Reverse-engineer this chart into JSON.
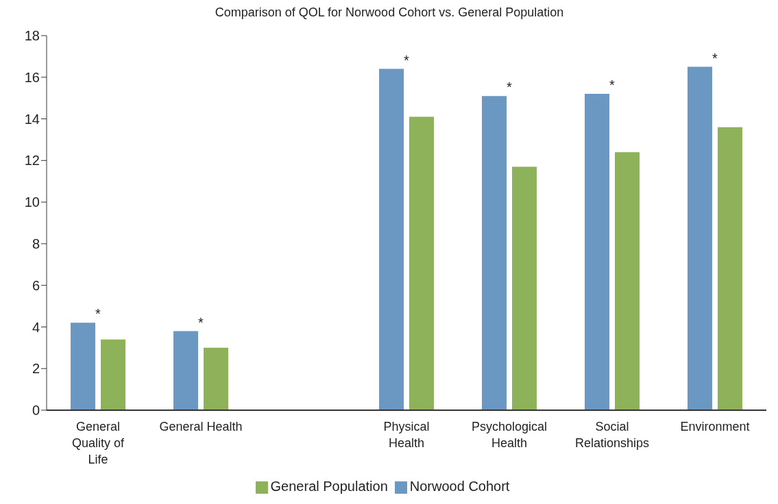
{
  "chart_data": {
    "type": "bar",
    "title": "Comparison of QOL for Norwood Cohort vs. General Population",
    "categories": [
      "General Quality of Life",
      "General Health",
      null,
      "Physical Health",
      "Psychological Health",
      "Social Relationships",
      "Environment"
    ],
    "series": [
      {
        "name": "Norwood Cohort",
        "color": "#6b98c3",
        "values": [
          4.2,
          3.8,
          null,
          16.4,
          15.1,
          15.2,
          16.5
        ]
      },
      {
        "name": "General Population",
        "color": "#8db25a",
        "values": [
          3.4,
          3.0,
          null,
          14.1,
          11.7,
          12.4,
          13.6
        ]
      }
    ],
    "ylim": [
      0,
      18
    ],
    "yticks": [
      0,
      2,
      4,
      6,
      8,
      10,
      12,
      14,
      16,
      18
    ],
    "grid": false,
    "legend": "bottom",
    "annotations": [
      {
        "text": "*",
        "x": "General Quality of Life",
        "y": 4.2
      },
      {
        "text": "*",
        "x": "General Health",
        "y": 3.8
      },
      {
        "text": "*",
        "x": "Physical Health",
        "y": 16.4
      },
      {
        "text": "*",
        "x": "Psychological Health",
        "y": 15.1
      },
      {
        "text": "*",
        "x": "Social Relationships",
        "y": 15.2
      },
      {
        "text": "*",
        "x": "Environment",
        "y": 16.5
      }
    ]
  }
}
